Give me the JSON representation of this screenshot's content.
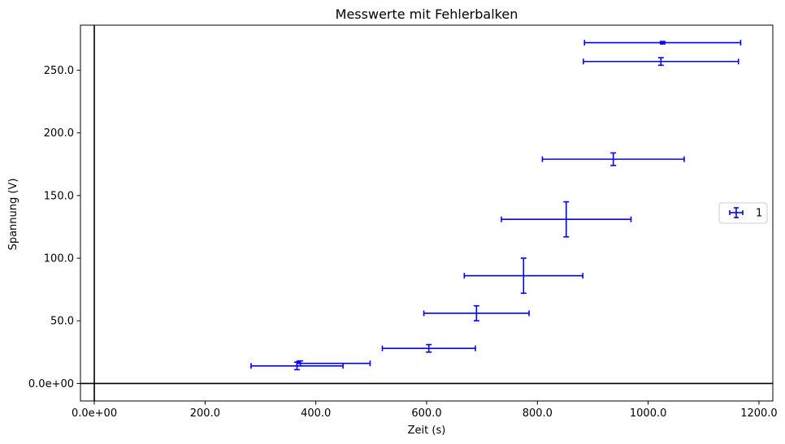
{
  "chart_data": {
    "type": "scatter",
    "title": "Messwerte mit Fehlerbalken",
    "xlabel": "Zeit (s)",
    "ylabel": "Spannung (V)",
    "xlim": [
      -25,
      1225
    ],
    "ylim": [
      -14,
      286
    ],
    "xticks": [
      0,
      200,
      400,
      600,
      800,
      1000,
      1200
    ],
    "xtick_labels": [
      "0.0e+00",
      "200.0",
      "400.0",
      "600.0",
      "800.0",
      "1000.0",
      "1200.0"
    ],
    "yticks": [
      0,
      50,
      100,
      150,
      200,
      250
    ],
    "ytick_labels": [
      "0.0e+00",
      "50.0",
      "100.0",
      "150.0",
      "200.0",
      "250.0"
    ],
    "zero_lines": true,
    "grid": false,
    "legend_position": "right",
    "series": [
      {
        "name": "1",
        "color": "#0000ff",
        "points": [
          {
            "x": 366,
            "y": 14,
            "xerr": 83,
            "yerr": 3
          },
          {
            "x": 372,
            "y": 16,
            "xerr": 0,
            "yerr": 2
          },
          {
            "x": 432,
            "y": 16,
            "xerr": 66,
            "yerr": 0
          },
          {
            "x": 604,
            "y": 28,
            "xerr": 84,
            "yerr": 3
          },
          {
            "x": 690,
            "y": 56,
            "xerr": 95,
            "yerr": 6
          },
          {
            "x": 775,
            "y": 86,
            "xerr": 107,
            "yerr": 14
          },
          {
            "x": 852,
            "y": 131,
            "xerr": 117,
            "yerr": 14
          },
          {
            "x": 937,
            "y": 179,
            "xerr": 128,
            "yerr": 5
          },
          {
            "x": 1023,
            "y": 257,
            "xerr": 140,
            "yerr": 3
          },
          {
            "x": 1026,
            "y": 272,
            "xerr": 141,
            "yerr": 1
          }
        ]
      }
    ]
  }
}
